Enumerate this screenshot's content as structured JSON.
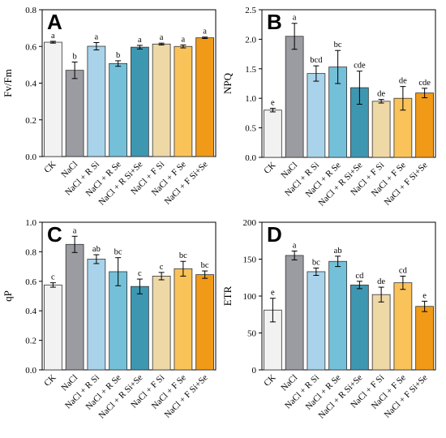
{
  "chart_data": [
    {
      "panel": "A",
      "type": "bar",
      "ylabel": "Fv/Fm",
      "ylim": [
        0,
        0.8
      ],
      "yticks": [
        "0.0",
        "0.2",
        "0.4",
        "0.6",
        "0.8"
      ],
      "categories": [
        "CK",
        "NaCl",
        "NaCl + R Si",
        "NaCl + R Se",
        "NaCl + R Si+Se",
        "NaCl + F Si",
        "NaCl + F Se",
        "NaCl + F Si+Se"
      ],
      "values": [
        0.623,
        0.47,
        0.601,
        0.507,
        0.596,
        0.613,
        0.6,
        0.647
      ],
      "errors": [
        0.005,
        0.045,
        0.02,
        0.015,
        0.01,
        0.005,
        0.008,
        0.004
      ],
      "letters": [
        "a",
        "b",
        "a",
        "b",
        "a",
        "a",
        "a",
        "a"
      ],
      "grid": false
    },
    {
      "panel": "B",
      "type": "bar",
      "ylabel": "NPQ",
      "ylim": [
        0,
        2.5
      ],
      "yticks": [
        "0.0",
        "0.5",
        "1.0",
        "1.5",
        "2.0",
        "2.5"
      ],
      "categories": [
        "CK",
        "NaCl",
        "NaCl + R Si",
        "NaCl + R Se",
        "NaCl + R Si+Se",
        "NaCl + F Si",
        "NaCl + F Se",
        "NaCl + F Si+Se"
      ],
      "values": [
        0.8,
        2.05,
        1.42,
        1.53,
        1.18,
        0.95,
        1.0,
        1.09
      ],
      "errors": [
        0.03,
        0.22,
        0.13,
        0.28,
        0.28,
        0.03,
        0.2,
        0.08
      ],
      "letters": [
        "e",
        "a",
        "bcd",
        "bc",
        "cde",
        "de",
        "de",
        "cde"
      ],
      "grid": false
    },
    {
      "panel": "C",
      "type": "bar",
      "ylabel": "qP",
      "ylim": [
        0,
        1.0
      ],
      "yticks": [
        "0.0",
        "0.2",
        "0.4",
        "0.6",
        "0.8",
        "1.0"
      ],
      "categories": [
        "CK",
        "NaCl",
        "NaCl + R Si",
        "NaCl + R Se",
        "NaCl + R Si+Se",
        "NaCl + F Si",
        "NaCl + F Se",
        "NaCl + F Si+Se"
      ],
      "values": [
        0.575,
        0.85,
        0.75,
        0.665,
        0.565,
        0.635,
        0.685,
        0.645
      ],
      "errors": [
        0.015,
        0.055,
        0.03,
        0.095,
        0.05,
        0.025,
        0.05,
        0.025
      ],
      "letters": [
        "c",
        "a",
        "ab",
        "bc",
        "c",
        "c",
        "bc",
        "bc"
      ],
      "grid": false
    },
    {
      "panel": "D",
      "type": "bar",
      "ylabel": "ETR",
      "ylim": [
        0,
        200
      ],
      "yticks": [
        "0",
        "50",
        "100",
        "150",
        "200"
      ],
      "categories": [
        "CK",
        "NaCl",
        "NaCl + R Si",
        "NaCl + R Se",
        "NaCl + R Si+Se",
        "NaCl + F Si",
        "NaCl + F Se",
        "NaCl + F Si+Se"
      ],
      "values": [
        81,
        155,
        133,
        147,
        115,
        102,
        118,
        86
      ],
      "errors": [
        16,
        6,
        5,
        7,
        5,
        10,
        9,
        7
      ],
      "letters": [
        "e",
        "a",
        "bc",
        "ab",
        "cd",
        "de",
        "cd",
        "e"
      ],
      "grid": false
    }
  ],
  "colors": [
    "#f2f2f2",
    "#9b9ba2",
    "#a8d3ea",
    "#74c0d9",
    "#3e97b1",
    "#eed8a6",
    "#fac35a",
    "#f19a17"
  ]
}
